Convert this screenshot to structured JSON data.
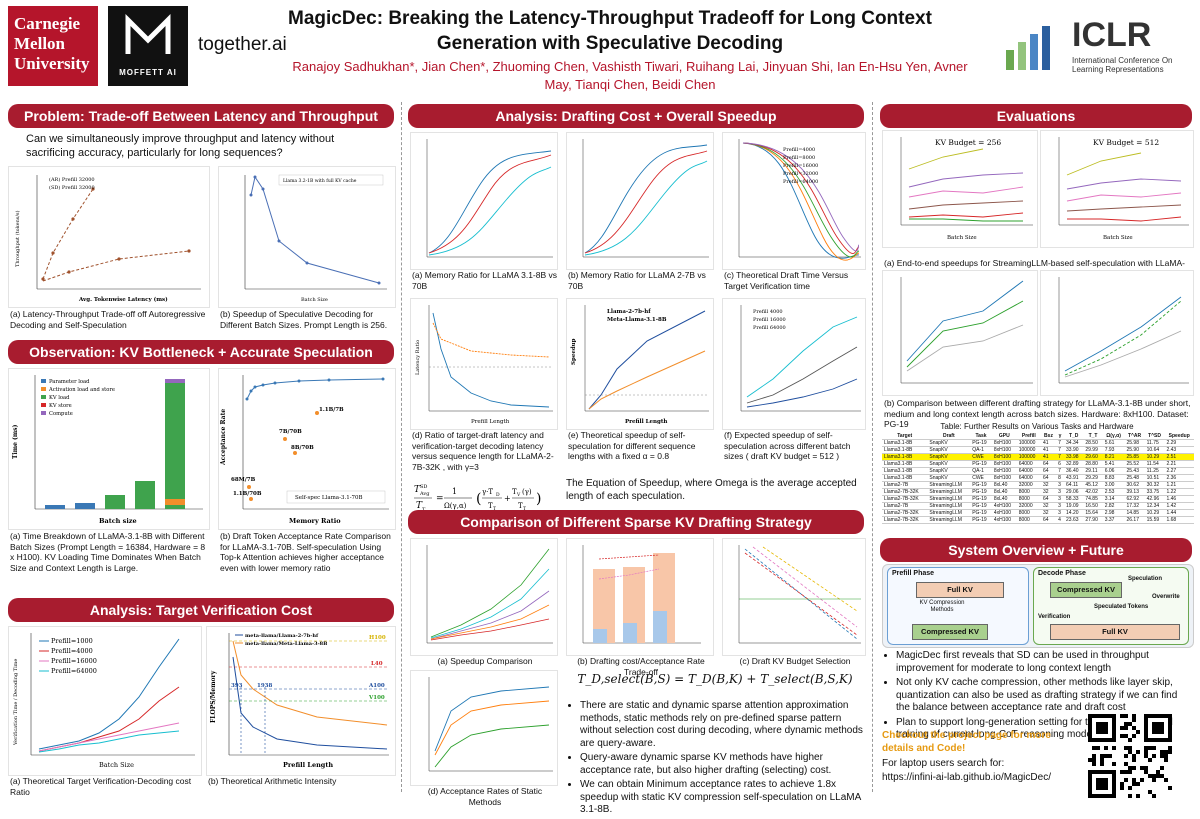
{
  "header": {
    "title_line1": "MagicDec: Breaking the Latency-Throughput Tradeoff for Long Context",
    "title_line2": "Generation with Speculative Decoding",
    "authors_line1": "Ranajoy Sadhukhan*, Jian Chen*, Zhuoming Chen, Vashisth Tiwari, Ruihang Lai, Jinyuan Shi, Ian En-Hsu Yen, Avner",
    "authors_line2": "May, Tianqi Chen, Beidi Chen",
    "logo_cmu": "Carnegie Mellon University",
    "logo_moffett": "MOFFETT AI",
    "logo_together": "together.ai",
    "logo_iclr": "ICLR",
    "logo_iclr_sub": "International Conference On Learning Representations"
  },
  "sections": {
    "problem": "Problem: Trade-off Between Latency and Throughput",
    "observation": "Observation: KV Bottleneck + Accurate Speculation Method",
    "verification": "Analysis: Target Verification Cost",
    "drafting": "Analysis: Drafting Cost + Overall Speedup",
    "comparison": "Comparison of Different Sparse KV Drafting Strategy",
    "evaluations": "Evaluations",
    "system": "System Overview + Future"
  },
  "problem": {
    "question": "Can we simultaneously improve throughput and latency without sacrificing accuracy, particularly for long sequences?",
    "cap_a": "(a) Latency-Throughput Trade-off off Autoregressive Decoding and Self-Speculation",
    "cap_b": "(b) Speedup of Speculative Decoding for Different Batch Sizes. Prompt Length is 256.",
    "legend_a1": "(AR) Prefill 32000",
    "legend_a2": "(SD) Prefill 32000",
    "xlabel_a": "Avg. Tokenwise Latency (ms)",
    "ylabel_a": "Throughput (tokens/s)",
    "legend_b": "Llama 3.2-1B with full KV cache",
    "xlabel_b": "Batch Size"
  },
  "observation": {
    "cap_a": "(a) Time Breakdown of LLaMA-3.1-8B with Different Batch Sizes (Prompt Length = 16384, Hardware = 8 x H100). KV Loading Time Dominates When Batch Size and Context Length is Large.",
    "cap_b": "(b) Draft Token Acceptance Rate Comparison for LLaMA-3.1-70B. Self-speculation Using Top-k Attention achieves higher acceptance even with lower memory ratio",
    "legend": [
      "Parameter load",
      "Activation load and store",
      "KV load",
      "KV store",
      "Compute"
    ],
    "xlabel_a": "Batch size",
    "ylabel_a": "Time (ms)",
    "xlabel_b": "Memory Ratio",
    "ylabel_b": "Acceptance Rate",
    "legend_b": "Self-spec Llama-3.1-70B",
    "point_labels": [
      "1.1B/7B",
      "7B/70B",
      "8B/70B",
      "68M/7B",
      "1.1B/70B"
    ]
  },
  "verification": {
    "cap_a": "(a) Theoretical Target Verification-Decoding cost Ratio",
    "cap_b": "(b) Theoretical Arithmetic Intensity",
    "legend_a": [
      "Prefill=1000",
      "Prefill=4000",
      "Prefill=16000",
      "Prefill=64000"
    ],
    "legend_b": [
      "meta-llama/Llama-2-7b-hf",
      "meta-llama/Meta-Llama-3-8B"
    ],
    "xlabel_a": "Batch Size",
    "ylabel_a": "Verification Time / Decoding Time",
    "xlabel_b": "Prefill Length",
    "ylabel_b": "FLOPS/Memory",
    "hw_labels": [
      "H100",
      "L40",
      "A100",
      "V100"
    ],
    "mark_labels": [
      "393",
      "1938"
    ]
  },
  "drafting": {
    "cap_a": "(a) Memory Ratio for LLaMA 3.1-8B vs 70B",
    "cap_b": "(b) Memory Ratio for LLaMA 2-7B vs 70B",
    "cap_c": "(c) Theoretical Draft Time Versus Target Verification time",
    "cap_d": "(d) Ratio of target-draft latency and verification-target decoding latency versus sequence length for LLaMA-2-7B-32K , with γ=3",
    "cap_e": "(e) Theoretical speedup of self-speculation for different sequence lengths with a fixed α = 0.8",
    "cap_f": "(f) Expected speedup of self-speculation across different batch sizes ( draft KV budget = 512 )",
    "equation_text": "The Equation of Speedup, where Omega is the average accepted length of each speculation.",
    "legend_c": [
      "Prefill=4000",
      "Prefill=8000",
      "Prefill=16000",
      "Prefill=32000",
      "Prefill=64000"
    ],
    "legend_e": [
      "Llama-2-7b-hf",
      "Meta-Llama-3.1-8B"
    ],
    "legend_f": [
      "Prefill 4000",
      "Prefill 16000",
      "Prefill 64000"
    ],
    "xlabel_d": "Prefill Length",
    "xlabel_e": "Prefill Length",
    "ylabel_e": "Speedup",
    "ylabel_d": "Latency Ratio"
  },
  "comparison": {
    "cap_a": "(a) Speedup Comparison",
    "cap_b": "(b) Drafting cost/Acceptance Rate Trade-off",
    "cap_c": "(c) Draft KV Budget Selection",
    "cap_d": "(d) Acceptance Rates of Static Methods",
    "equation": "T_D,select(B,S) = T_D(B,K) + T_select(B,S,K)",
    "bullets": [
      "There are static and dynamic sparse attention approximation methods, static methods rely on pre-defined sparse pattern without selection cost during decoding, where dynamic methods are query-aware.",
      "Query-aware dynamic sparse KV methods have higher acceptance rate, but also higher drafting (selecting) cost.",
      "We can obtain Minimum acceptance rates to achieve 1.8x speedup with static KV compression self-speculation on LLaMA 3.1-8B."
    ]
  },
  "evaluations": {
    "kv256": "KV Budget = 256",
    "kv512": "KV Budget = 512",
    "cap_a": "(a) End-to-end speedups for StreamingLLM-based self-speculation with LLaMA-3.1-8B on 8xA100",
    "cap_b": "(b) Comparison between different drafting strategy for LLaMA-3.1-8B under short, medium and long context length across batch sizes. Hardware: 8xH100. Dataset: PG-19",
    "table_title": "Table: Further Results on Various Tasks and Hardware",
    "xlabel": "Batch Size",
    "ylabel": "Speedup",
    "table_headers": [
      "Target",
      "Draft",
      "Task",
      "GPU",
      "Prefill",
      "Bsz",
      "γ",
      "T_D",
      "T_T",
      "Ω(γ,α)",
      "T^AR",
      "T^SD",
      "Speedup"
    ],
    "table_rows": [
      [
        "Llama3.1-8B",
        "SnapKV",
        "PG-19",
        "8xH100",
        "100000",
        "41",
        "7",
        "34.34",
        "28.50",
        "5.61",
        "25.98",
        "11.75",
        "2.29"
      ],
      [
        "Llama3.1-8B",
        "SnapKV",
        "QA-1",
        "8xH100",
        "100000",
        "41",
        "7",
        "33.90",
        "29.99",
        "7.93",
        "25.90",
        "10.64",
        "2.43"
      ],
      [
        "Llama3.1-8B",
        "SnapKV",
        "CWE",
        "8xH100",
        "100000",
        "41",
        "7",
        "33.98",
        "29.60",
        "8.21",
        "25.85",
        "10.29",
        "2.51"
      ],
      [
        "Llama3.1-8B",
        "SnapKV",
        "PG-19",
        "8xH100",
        "64000",
        "64",
        "6",
        "32.89",
        "28.80",
        "5.41",
        "25.52",
        "11.54",
        "2.21"
      ],
      [
        "Llama3.1-8B",
        "SnapKV",
        "QA-1",
        "8xH100",
        "64000",
        "64",
        "7",
        "36.40",
        "29.11",
        "6.06",
        "25.43",
        "11.25",
        "2.27"
      ],
      [
        "Llama3.1-8B",
        "SnapKV",
        "CWE",
        "8xH100",
        "64000",
        "64",
        "8",
        "43.91",
        "29.29",
        "8.83",
        "25.48",
        "10.51",
        "2.36"
      ],
      [
        "Llama2-7B",
        "StreamingLLM",
        "PG-19",
        "8xL40",
        "32000",
        "32",
        "3",
        "64.11",
        "45.12",
        "3.00",
        "30.62",
        "30.32",
        "1.21"
      ],
      [
        "Llama2-7B-32K",
        "StreamingLLM",
        "PG-19",
        "8xL40",
        "8000",
        "32",
        "3",
        "29.06",
        "42.02",
        "2.53",
        "39.13",
        "33.75",
        "1.22"
      ],
      [
        "Llama2-7B-32K",
        "StreamingLLM",
        "PG-19",
        "8xL40",
        "8000",
        "64",
        "3",
        "58.33",
        "74.85",
        "3.14",
        "62.92",
        "42.96",
        "1.46"
      ],
      [
        "Llama2-7B",
        "StreamingLLM",
        "PG-19",
        "4xH100",
        "32000",
        "32",
        "3",
        "19.09",
        "16.50",
        "2.82",
        "17.32",
        "12.34",
        "1.42"
      ],
      [
        "Llama2-7B-32K",
        "StreamingLLM",
        "PG-19",
        "4xH100",
        "8000",
        "32",
        "3",
        "14.20",
        "15.64",
        "2.98",
        "14.85",
        "10.29",
        "1.44"
      ],
      [
        "Llama2-7B-32K",
        "StreamingLLM",
        "PG-19",
        "4xH100",
        "8000",
        "64",
        "4",
        "23.63",
        "27.90",
        "3.37",
        "26.17",
        "15.59",
        "1.68"
      ]
    ]
  },
  "system": {
    "prefill_phase": "Prefill Phase",
    "decode_phase": "Decode Phase",
    "full_kv": "Full KV",
    "kv_methods": "KV Compression Methods",
    "compressed_kv": "Compressed KV",
    "speculation": "Speculation",
    "speculated_tokens": "Speculated Tokens",
    "overwrite": "Overwrite",
    "verification": "Verification",
    "bullets": [
      "MagicDec first reveals that SD can be used in throughput improvement for moderate to long context length",
      "Not only KV cache compression, other methods like layer skip, quantization can also be used as drafting strategy if we can find the balance between acceptance rate and draft cost",
      "Plan to support long-generation setting for the deployment and training of current long-CoT reasoning models"
    ],
    "checkout": "Checkout the project page for more details and Code!",
    "laptop": "For laptop users search for:",
    "url": "https://infini-ai-lab.github.io/MagicDec/"
  },
  "colors": {
    "accent": "#a81c2f",
    "author": "#b5152b",
    "checkout": "#e69a12"
  }
}
